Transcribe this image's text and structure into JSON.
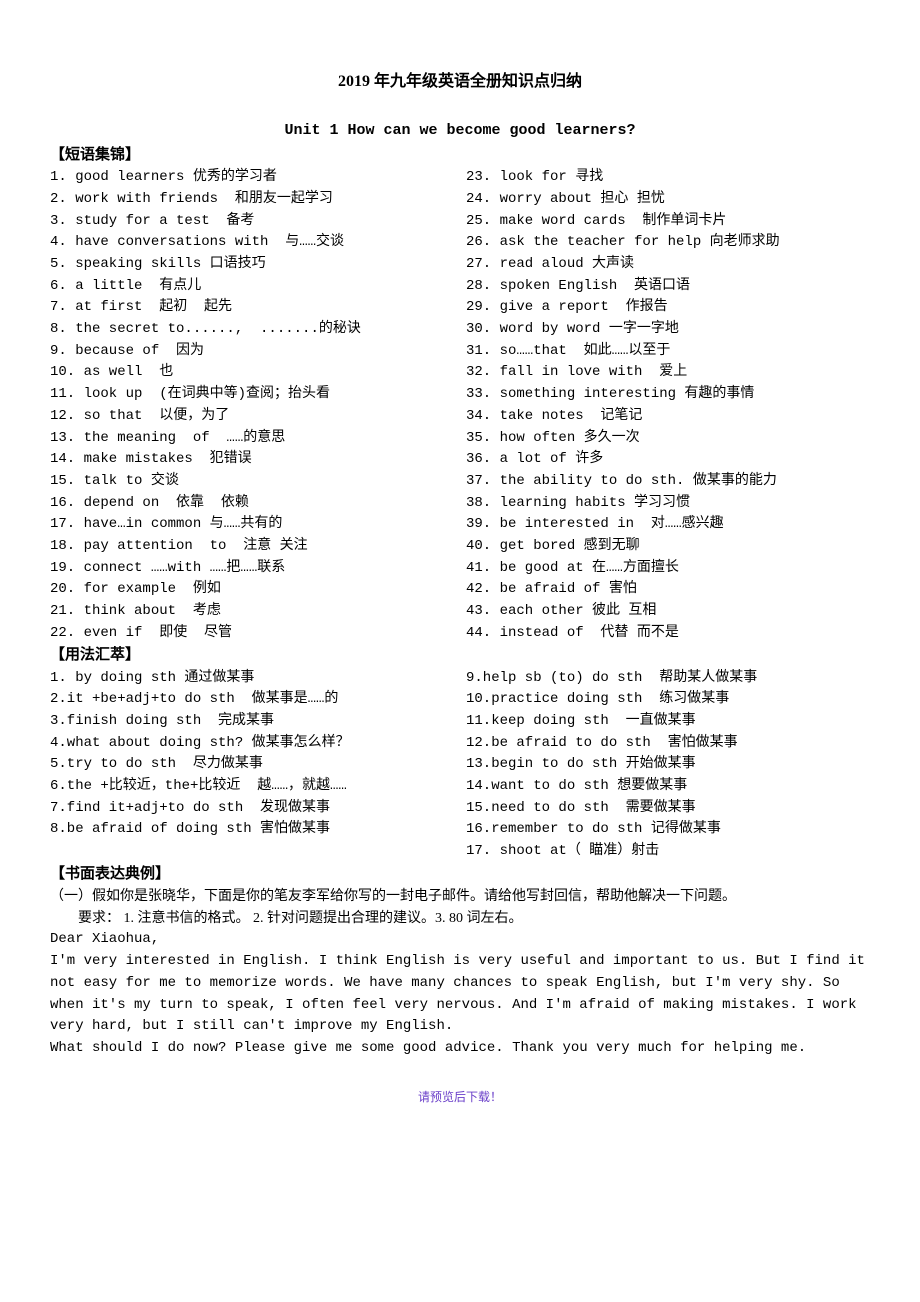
{
  "title": "2019 年九年级英语全册知识点归纳",
  "unit_title": "Unit 1  How can we become good learners?",
  "sections": {
    "phrases_hdr": "【短语集锦】",
    "usage_hdr": "【用法汇萃】",
    "essay_hdr": "【书面表达典例】"
  },
  "phrases_left": [
    "1. good learners 优秀的学习者",
    "2. work with friends  和朋友一起学习",
    "3. study for a test  备考",
    "4. have conversations with  与……交谈",
    "5. speaking skills 口语技巧",
    "6. a little  有点儿",
    "7. at first  起初  起先",
    "8. the secret to......,  .......的秘诀",
    "9. because of  因为",
    "10. as well  也",
    "11. look up  (在词典中等)查阅；抬头看",
    "12. so that  以便，为了",
    "13. the meaning  of  ……的意思",
    "14. make mistakes  犯错误",
    "15. talk to 交谈",
    "16. depend on  依靠  依赖",
    "17. have…in common 与……共有的",
    "18. pay attention  to  注意 关注",
    "19. connect ……with ……把……联系",
    "20. for example  例如",
    "21. think about  考虑",
    "22. even if  即使  尽管"
  ],
  "phrases_right": [
    "23. look for 寻找",
    "24. worry about 担心 担忧",
    "25. make word cards  制作单词卡片",
    "26. ask the teacher for help 向老师求助",
    "27. read aloud 大声读",
    "28. spoken English  英语口语",
    "29. give a report  作报告",
    "30. word by word 一字一字地",
    "31. so……that  如此……以至于",
    "32. fall in love with  爱上",
    "33. something interesting 有趣的事情",
    "34. take notes  记笔记",
    "35. how often 多久一次",
    "36. a lot of 许多",
    "37. the ability to do sth. 做某事的能力",
    "38. learning habits 学习习惯",
    "39. be interested in  对……感兴趣",
    "40. get bored 感到无聊",
    "41. be good at 在……方面擅长",
    "42. be afraid of 害怕",
    "43. each other 彼此 互相",
    "44. instead of  代替 而不是"
  ],
  "usage_left": [
    "1. by doing sth 通过做某事",
    "2.it +be+adj+to do sth  做某事是……的",
    "3.finish doing sth  完成某事",
    "4.what about doing sth? 做某事怎么样？",
    "5.try to do sth  尽力做某事",
    "6.the +比较近，the+比较近  越……，就越……",
    "7.find it+adj+to do sth  发现做某事",
    "8.be afraid of doing sth 害怕做某事"
  ],
  "usage_right": [
    "9.help sb (to) do sth  帮助某人做某事",
    "10.practice doing sth  练习做某事",
    "11.keep doing sth  一直做某事",
    "12.be afraid to do sth  害怕做某事",
    "13.begin to do sth 开始做某事",
    "14.want to do sth 想要做某事",
    "15.need to do sth  需要做某事",
    "16.remember to do sth 记得做某事",
    "17. shoot at（ 瞄准）射击"
  ],
  "essay": {
    "intro1": "（一）假如你是张晓华，下面是你的笔友李军给你写的一封电子邮件。请给他写封回信，帮助他解决一下问题。",
    "req": "要求：  1. 注意书信的格式。 2. 针对问题提出合理的建议。3. 80 词左右。",
    "greeting": "Dear Xiaohua,",
    "p1": "I'm very interested  in English. I think English is very useful and important to us. But I find it not easy for me to memorize words. We have many chances to speak English, but I'm very shy. So when it's my turn to speak, I often feel very nervous. And I'm afraid of making mistakes. I work very hard,  but I still can't improve my English.",
    "p2": "What should I do now? Please give me some good advice. Thank you very much for helping me."
  },
  "footer": "请预览后下载！"
}
